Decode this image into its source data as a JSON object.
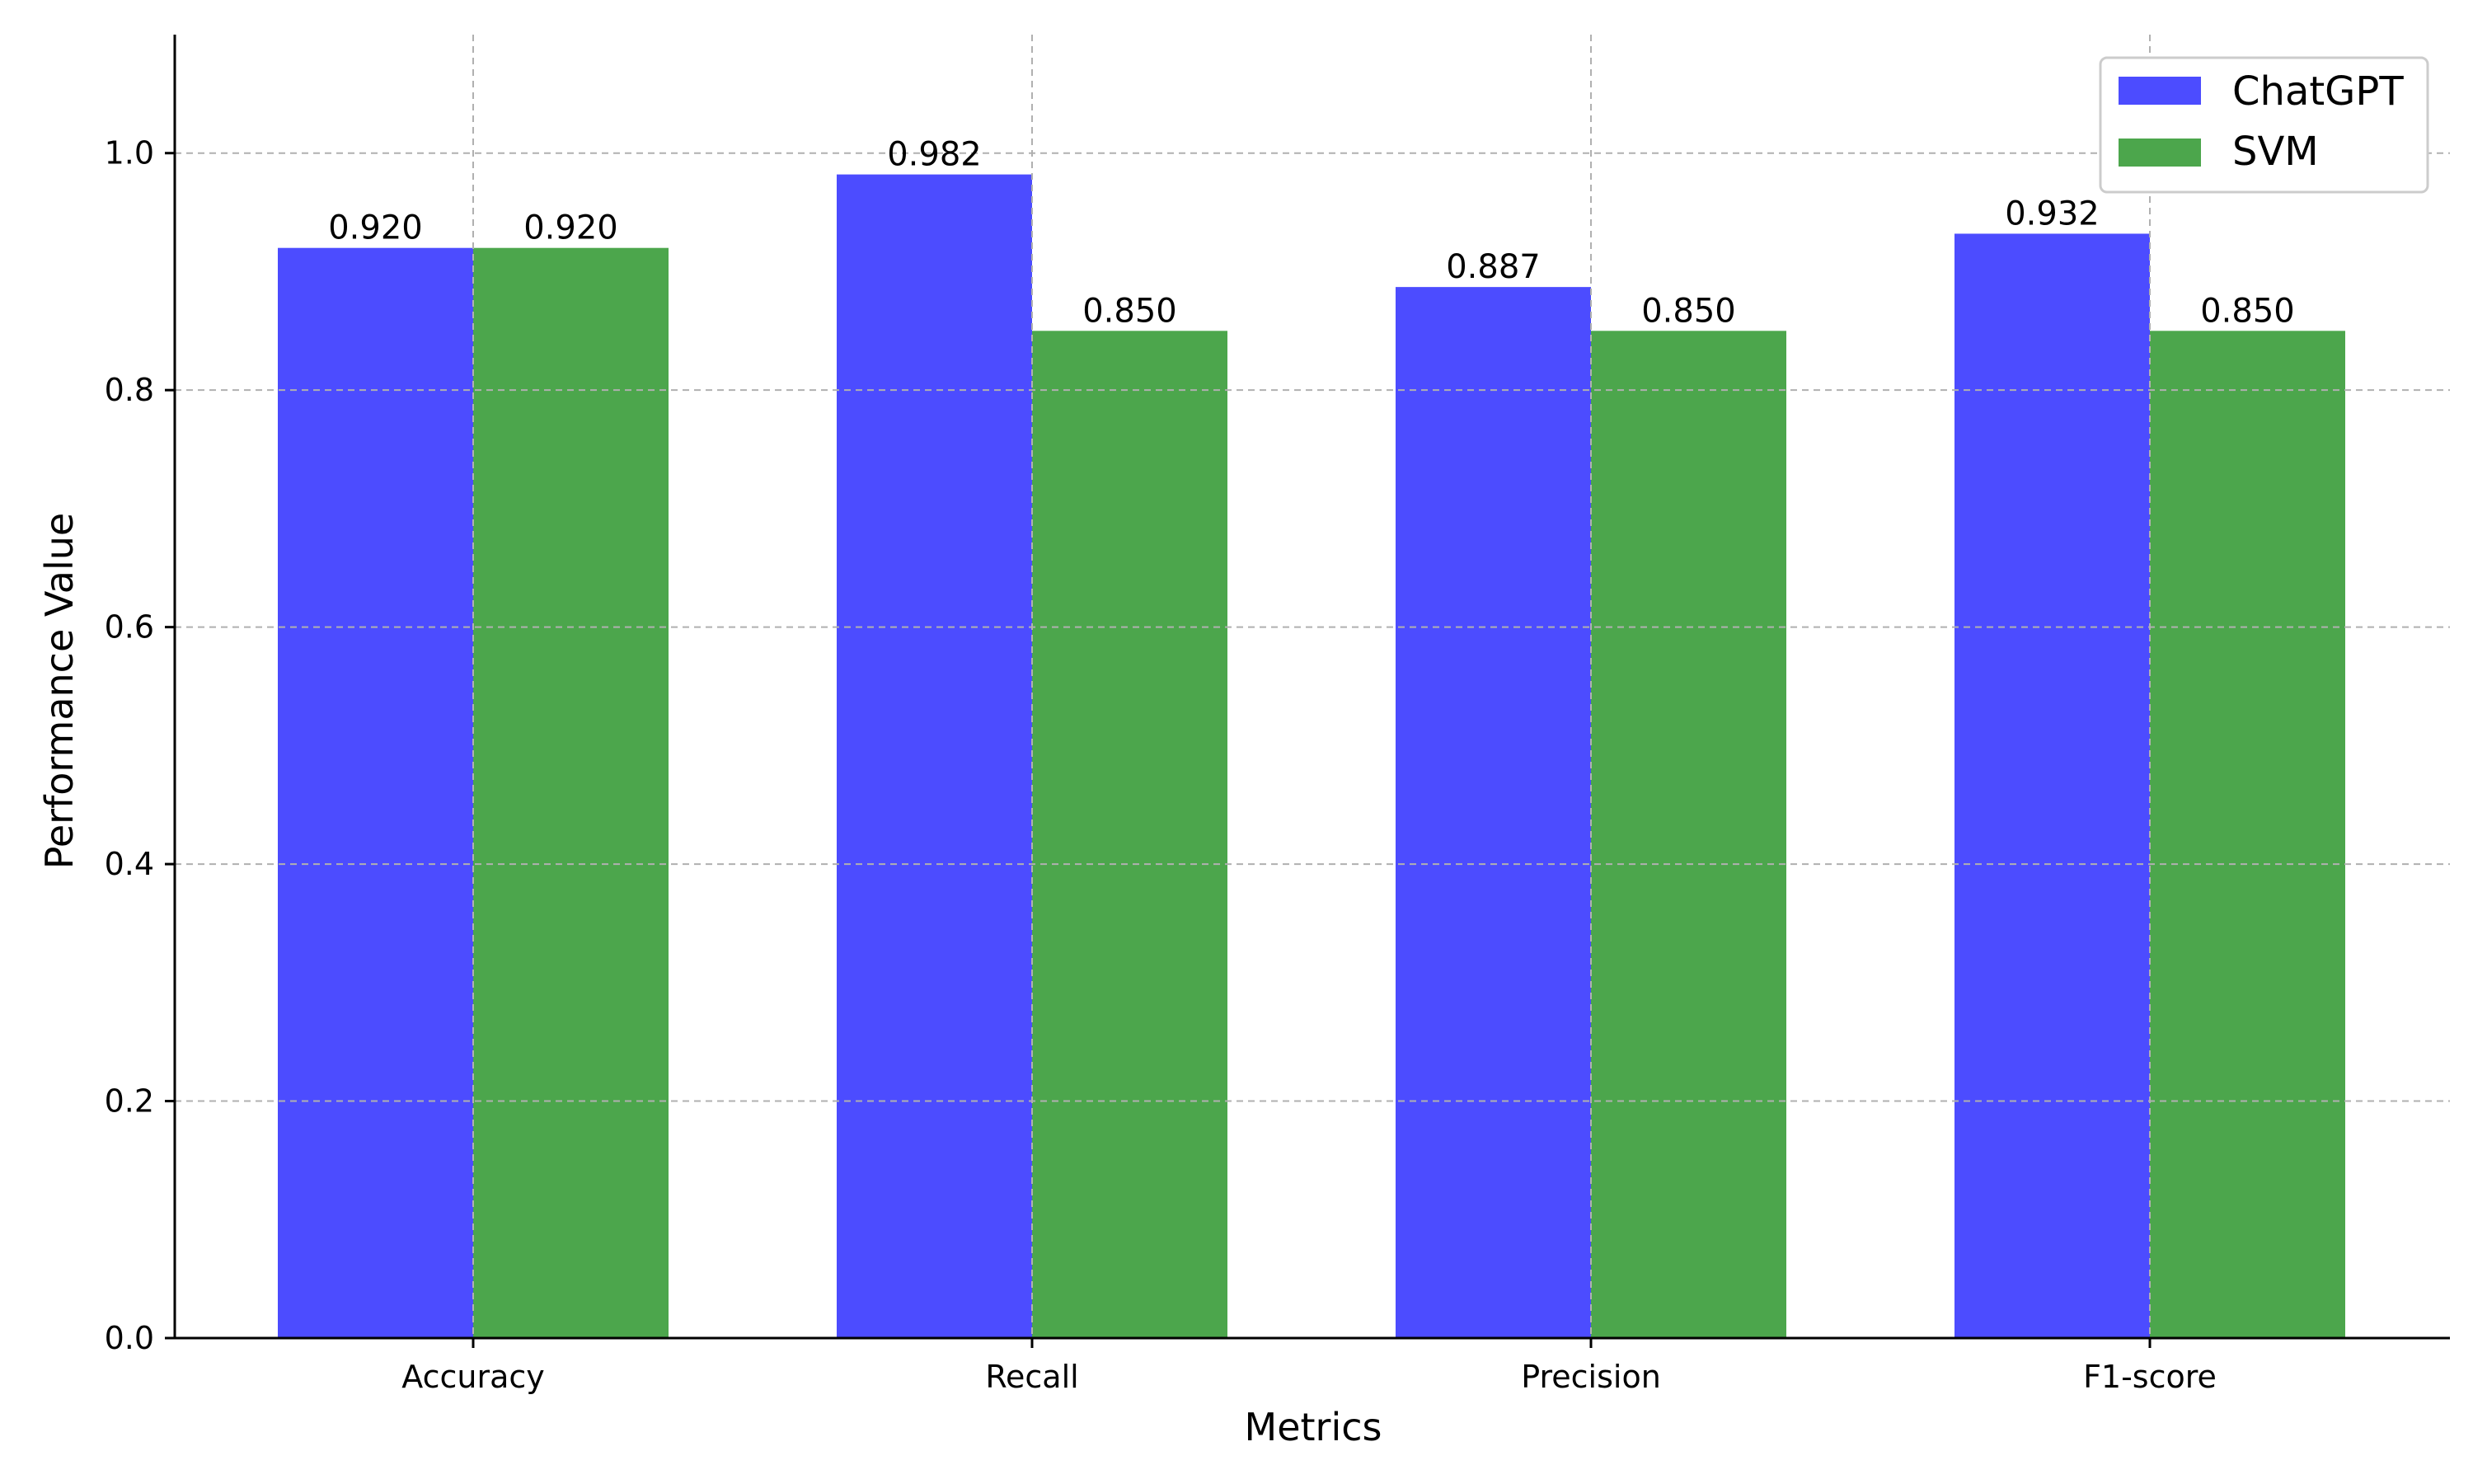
{
  "chart_data": {
    "type": "bar",
    "title": "",
    "xlabel": "Metrics",
    "ylabel": "Performance Value",
    "categories": [
      "Accuracy",
      "Recall",
      "Precision",
      "F1-score"
    ],
    "series": [
      {
        "name": "ChatGPT",
        "values": [
          0.92,
          0.982,
          0.887,
          0.932
        ],
        "labels": [
          "0.920",
          "0.982",
          "0.887",
          "0.932"
        ],
        "color": "#4c4cff"
      },
      {
        "name": "SVM",
        "values": [
          0.92,
          0.85,
          0.85,
          0.85
        ],
        "labels": [
          "0.920",
          "0.850",
          "0.850",
          "0.850"
        ],
        "color": "#4ca64c"
      }
    ],
    "ylim": [
      0,
      1.1
    ],
    "yticks": [
      0.0,
      0.2,
      0.4,
      0.6,
      0.8,
      1.0
    ],
    "ytick_labels": [
      "0.0",
      "0.2",
      "0.4",
      "0.6",
      "0.8",
      "1.0"
    ],
    "grid": true,
    "legend_position": "top-right"
  }
}
